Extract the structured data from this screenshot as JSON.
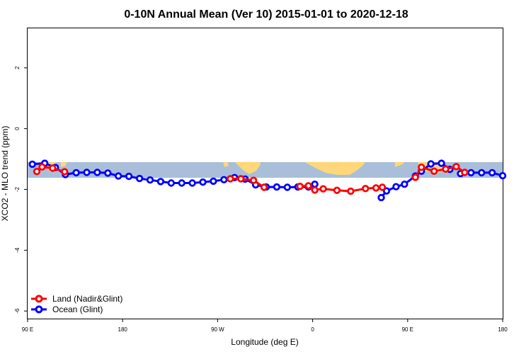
{
  "chart_data": {
    "type": "line",
    "title": "0-10N Annual Mean (Ver 10)   2015-01-01 to 2020-12-18",
    "xlabel": "Longitude (deg E)",
    "ylabel": "XCO2 - MLO trend (ppm)",
    "xlim": [
      90,
      540
    ],
    "ylim": [
      -6.25,
      3.3
    ],
    "x_ticks": [
      {
        "value": 90,
        "label": "90 E"
      },
      {
        "value": 180,
        "label": "180"
      },
      {
        "value": 270,
        "label": "90 W"
      },
      {
        "value": 360,
        "label": "0"
      },
      {
        "value": 450,
        "label": "90 E"
      },
      {
        "value": 540,
        "label": "180"
      }
    ],
    "y_ticks": [
      {
        "value": 2,
        "label": "2"
      },
      {
        "value": 0,
        "label": "0"
      },
      {
        "value": -2,
        "label": "-2"
      },
      {
        "value": -4,
        "label": "-4"
      },
      {
        "value": -6,
        "label": "-6"
      }
    ],
    "grid": false,
    "legend_position": "bottom-left",
    "map_band": {
      "y_top": -1.1,
      "y_bottom": -1.62,
      "ocean_color": "#a9bfd9",
      "land_color": "#fdd77a"
    },
    "series": [
      {
        "name": "Land (Nadir&Glint)",
        "color": "#ff0000",
        "segments": [
          {
            "x": [
              98.7,
              103.7,
              113.7,
              125
            ],
            "y": [
              -1.41,
              -1.26,
              -1.3,
              -1.42
            ]
          },
          {
            "x": [
              282,
              292,
              304,
              314
            ],
            "y": [
              -1.65,
              -1.65,
              -1.7,
              -1.93
            ]
          },
          {
            "x": [
              348,
              356,
              362,
              370,
              383,
              396,
              410,
              420,
              426
            ],
            "y": [
              -1.9,
              -1.88,
              -2.02,
              -1.98,
              -2.03,
              -2.06,
              -1.97,
              -1.95,
              -1.93
            ]
          },
          {
            "x": [
              457.3,
              463,
              475,
              486,
              496,
              504
            ],
            "y": [
              -1.6,
              -1.27,
              -1.4,
              -1.33,
              -1.25,
              -1.44
            ]
          }
        ]
      },
      {
        "name": "Ocean (Glint)",
        "color": "#0000ff",
        "segments": [
          {
            "x": [
              94.5,
              106.2,
              116.3,
              125.8,
              136,
              146,
              156,
              166,
              176,
              186,
              196,
              206,
              216,
              226,
              236,
              246,
              256,
              266,
              276,
              286,
              296,
              306,
              316,
              326,
              336,
              346,
              356,
              362
            ],
            "y": [
              -1.17,
              -1.14,
              -1.28,
              -1.51,
              -1.45,
              -1.44,
              -1.44,
              -1.46,
              -1.56,
              -1.57,
              -1.64,
              -1.69,
              -1.74,
              -1.79,
              -1.79,
              -1.79,
              -1.76,
              -1.73,
              -1.68,
              -1.61,
              -1.66,
              -1.85,
              -1.92,
              -1.92,
              -1.93,
              -1.92,
              -1.92,
              -1.83
            ]
          },
          {
            "x": [
              425,
              430,
              439,
              447,
              457.3,
              463,
              472,
              482,
              490
            ],
            "y": [
              -2.27,
              -2.05,
              -1.91,
              -1.83,
              -1.56,
              -1.4,
              -1.16,
              -1.14,
              -1.34
            ]
          },
          {
            "x": [
              500,
              510,
              520,
              530,
              540
            ],
            "y": [
              -1.48,
              -1.45,
              -1.45,
              -1.45,
              -1.55
            ]
          }
        ]
      }
    ]
  }
}
